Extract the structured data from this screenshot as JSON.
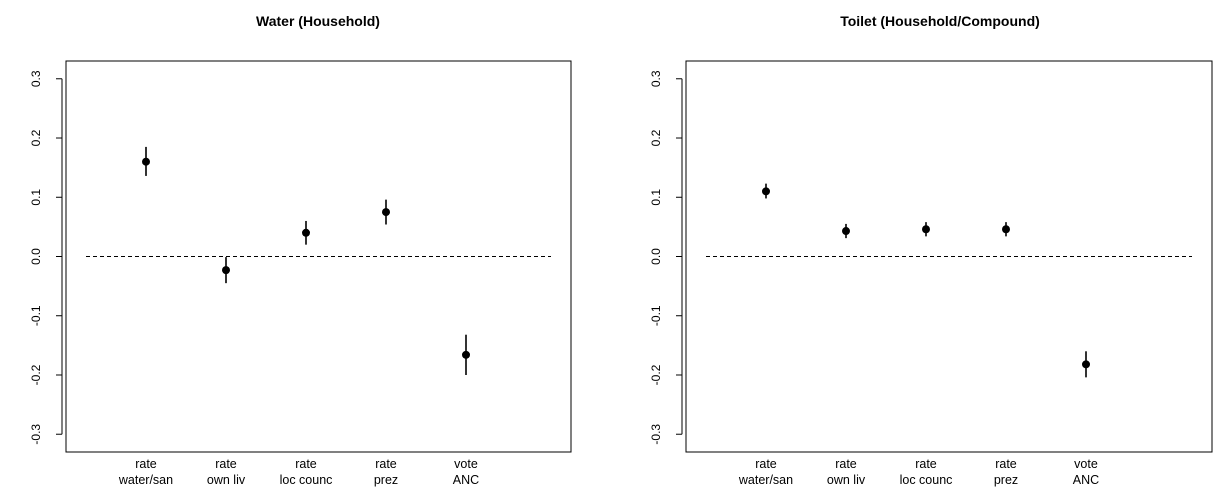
{
  "chart_data": [
    {
      "type": "scatter",
      "title": "Water (Household)",
      "categories": [
        [
          "rate",
          "water/san"
        ],
        [
          "rate",
          "own liv"
        ],
        [
          "rate",
          "loc counc"
        ],
        [
          "rate",
          "prez"
        ],
        [
          "vote",
          "ANC"
        ]
      ],
      "estimates": [
        0.16,
        -0.023,
        0.04,
        0.075,
        -0.166
      ],
      "ci_low": [
        0.136,
        -0.045,
        0.02,
        0.054,
        -0.2
      ],
      "ci_high": [
        0.185,
        -0.001,
        0.06,
        0.096,
        -0.132
      ],
      "reference_line": 0.0,
      "ylim": [
        -0.33,
        0.33
      ],
      "yticks": [
        "-0.3",
        "-0.2",
        "-0.1",
        "0.0",
        "0.1",
        "0.2",
        "0.3"
      ],
      "xlabel": "",
      "ylabel": ""
    },
    {
      "type": "scatter",
      "title": "Toilet (Household/Compound)",
      "categories": [
        [
          "rate",
          "water/san"
        ],
        [
          "rate",
          "own liv"
        ],
        [
          "rate",
          "loc counc"
        ],
        [
          "rate",
          "prez"
        ],
        [
          "vote",
          "ANC"
        ]
      ],
      "estimates": [
        0.11,
        0.043,
        0.046,
        0.046,
        -0.182
      ],
      "ci_low": [
        0.098,
        0.031,
        0.034,
        0.034,
        -0.204
      ],
      "ci_high": [
        0.123,
        0.055,
        0.058,
        0.058,
        -0.16
      ],
      "reference_line": 0.0,
      "ylim": [
        -0.33,
        0.33
      ],
      "yticks": [
        "-0.3",
        "-0.2",
        "-0.1",
        "0.0",
        "0.1",
        "0.2",
        "0.3"
      ],
      "xlabel": "",
      "ylabel": ""
    }
  ]
}
